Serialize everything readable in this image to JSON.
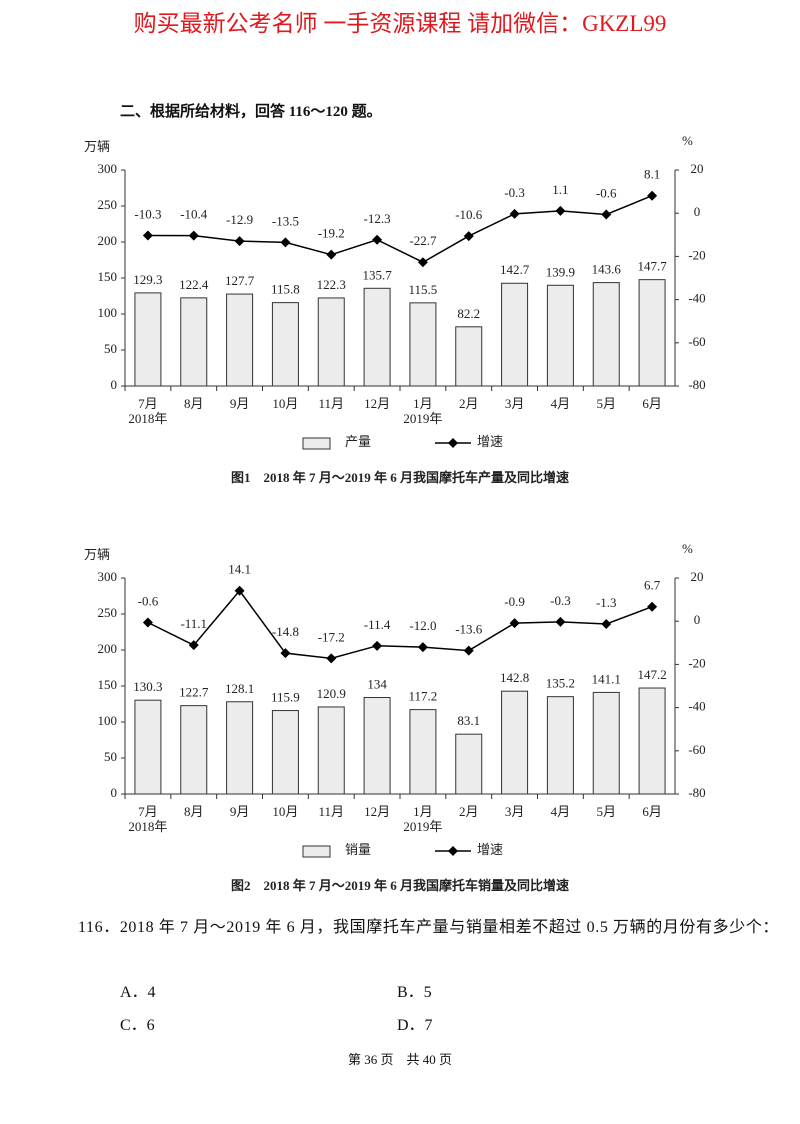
{
  "watermark": "购买最新公考名师 一手资源课程 请加微信：GKZL99",
  "section_title": "二、根据所给材料，回答 116～120 题。",
  "chart_data": [
    {
      "type": "bar",
      "title": "图1　2018 年 7 月～2019 年 6 月我国摩托车产量及同比增速",
      "y_label": "万辆",
      "y2_label": "%",
      "categories": [
        "7月",
        "8月",
        "9月",
        "10月",
        "11月",
        "12月",
        "1月",
        "2月",
        "3月",
        "4月",
        "5月",
        "6月"
      ],
      "year_labels": [
        "2018年",
        null,
        null,
        null,
        null,
        null,
        "2019年",
        null,
        null,
        null,
        null,
        null
      ],
      "series": [
        {
          "name": "产量",
          "type": "bar",
          "color": "#ececec",
          "values": [
            129.3,
            122.4,
            127.7,
            115.8,
            122.3,
            135.7,
            115.5,
            82.2,
            142.7,
            139.9,
            143.6,
            147.7
          ]
        },
        {
          "name": "增速",
          "type": "line",
          "axis": "y2",
          "color": "#000000",
          "values": [
            -10.3,
            -10.4,
            -12.9,
            -13.5,
            -19.2,
            -12.3,
            -22.7,
            -10.6,
            -0.3,
            1.1,
            -0.6,
            8.1
          ]
        }
      ],
      "ylim": [
        0,
        300
      ],
      "yticks": [
        0,
        50,
        100,
        150,
        200,
        250,
        300
      ],
      "y2lim": [
        -80,
        20
      ],
      "y2ticks": [
        -80,
        -60,
        -40,
        -20,
        0,
        20
      ]
    },
    {
      "type": "bar",
      "title": "图2　2018 年 7 月～2019 年 6 月我国摩托车销量及同比增速",
      "y_label": "万辆",
      "y2_label": "%",
      "categories": [
        "7月",
        "8月",
        "9月",
        "10月",
        "11月",
        "12月",
        "1月",
        "2月",
        "3月",
        "4月",
        "5月",
        "6月"
      ],
      "year_labels": [
        "2018年",
        null,
        null,
        null,
        null,
        null,
        "2019年",
        null,
        null,
        null,
        null,
        null
      ],
      "series": [
        {
          "name": "销量",
          "type": "bar",
          "color": "#ececec",
          "values": [
            130.3,
            122.7,
            128.1,
            115.9,
            120.9,
            134,
            117.2,
            83.1,
            142.8,
            135.2,
            141.1,
            147.2
          ]
        },
        {
          "name": "增速",
          "type": "line",
          "axis": "y2",
          "color": "#000000",
          "values": [
            -0.6,
            -11.1,
            14.1,
            -14.8,
            -17.2,
            -11.4,
            -12.0,
            -13.6,
            -0.9,
            -0.3,
            -1.3,
            6.7
          ],
          "value_labels": [
            "-0.6",
            "-11.1",
            "14.1",
            "-14.8",
            "-17.2",
            "-11.4",
            "-12.0",
            "-13.6",
            "-0.9",
            "-0.3",
            "-1.3",
            "6.7"
          ]
        }
      ],
      "ylim": [
        0,
        300
      ],
      "yticks": [
        0,
        50,
        100,
        150,
        200,
        250,
        300
      ],
      "y2lim": [
        -80,
        20
      ],
      "y2ticks": [
        -80,
        -60,
        -40,
        -20,
        0,
        20
      ]
    }
  ],
  "question": {
    "number": "116．",
    "text": "2018 年 7 月～2019 年 6 月，我国摩托车产量与销量相差不超过 0.5 万辆的月份有多少个：",
    "options": [
      "A．4",
      "B．5",
      "C．6",
      "D．7"
    ]
  },
  "footer": "第 36 页　共 40 页"
}
